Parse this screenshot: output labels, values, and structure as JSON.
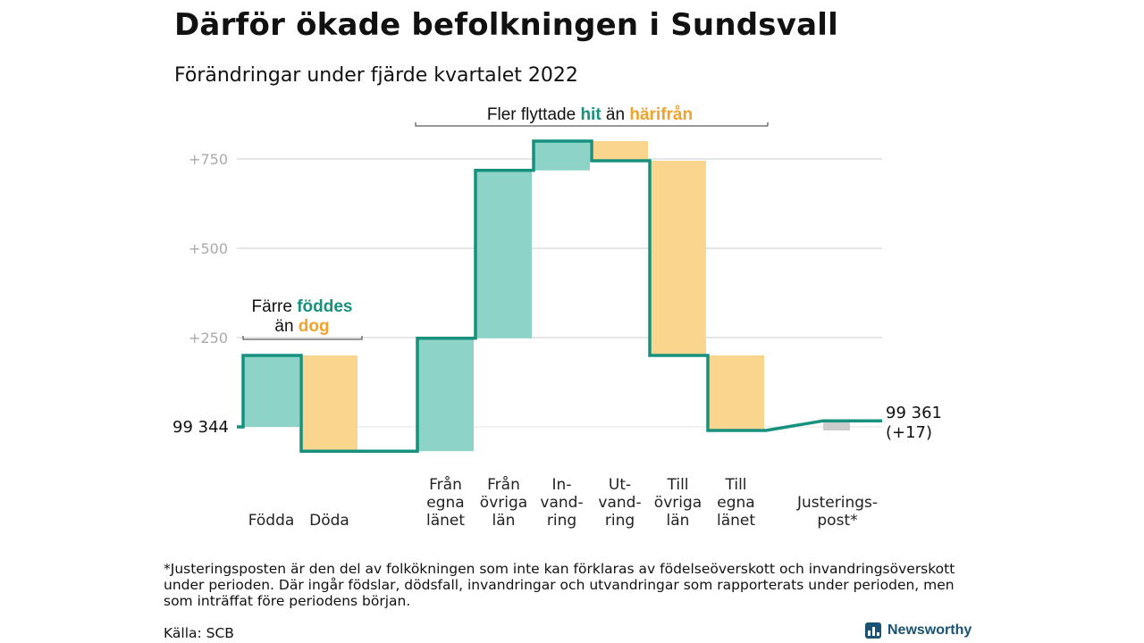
{
  "title": "Därför ökade befolkningen i Sundsvall",
  "subtitle": "Förändringar under fjärde kvartalet 2022",
  "colors": {
    "in": "#8dd3c7",
    "out": "#fad58e",
    "adjust": "#cccccc",
    "line": "#16917e",
    "accent_in": "#16917e",
    "accent_out": "#f0a22a",
    "grid": "#dddddd",
    "tick": "#aaaaaa"
  },
  "annotations": {
    "births": {
      "pre": "Färre ",
      "hl1": "föddes",
      "mid": "än ",
      "hl2": "dog"
    },
    "moves": {
      "pre": "Fler flyttade ",
      "hl1": "hit",
      "mid": " än ",
      "hl2": "härifrån"
    }
  },
  "chart_data": {
    "type": "waterfall",
    "start": {
      "label": "99 344",
      "value": 99344
    },
    "end": {
      "label": "99 361",
      "change_label": "(+17)",
      "value": 99361
    },
    "yticks": [
      {
        "value": 250,
        "label": "+250"
      },
      {
        "value": 500,
        "label": "+500"
      },
      {
        "value": 750,
        "label": "+750"
      }
    ],
    "steps": [
      {
        "category": "Födda",
        "from": 0,
        "to": 200,
        "kind": "in"
      },
      {
        "category": "Döda",
        "from": 200,
        "to": -68,
        "kind": "out"
      },
      {
        "category": "",
        "from": -68,
        "to": -68,
        "kind": "gap"
      },
      {
        "category": "Från\negna\nlänet",
        "from": -68,
        "to": 248,
        "kind": "in"
      },
      {
        "category": "Från\növriga\nlän",
        "from": 248,
        "to": 718,
        "kind": "in"
      },
      {
        "category": "In-\nvand-\nring",
        "from": 718,
        "to": 800,
        "kind": "in"
      },
      {
        "category": "Ut-\nvand-\nring",
        "from": 800,
        "to": 745,
        "kind": "out"
      },
      {
        "category": "Till\növriga\nlän",
        "from": 745,
        "to": 200,
        "kind": "out"
      },
      {
        "category": "Till\negna\nlänet",
        "from": 200,
        "to": -10,
        "kind": "out"
      },
      {
        "category": "Justerings-\npost*",
        "from": -10,
        "to": 17,
        "kind": "adjust"
      }
    ]
  },
  "footnote": "*Justeringsposten är den del av folkökningen som inte kan förklaras av födelseöverskott och invandringsöverskott under perioden. Där ingår födslar, dödsfall, invandringar och utvandringar som rapporterats under perioden, men som inträffat före periodens början.",
  "source": "Källa: SCB",
  "brand": "Newsworthy"
}
